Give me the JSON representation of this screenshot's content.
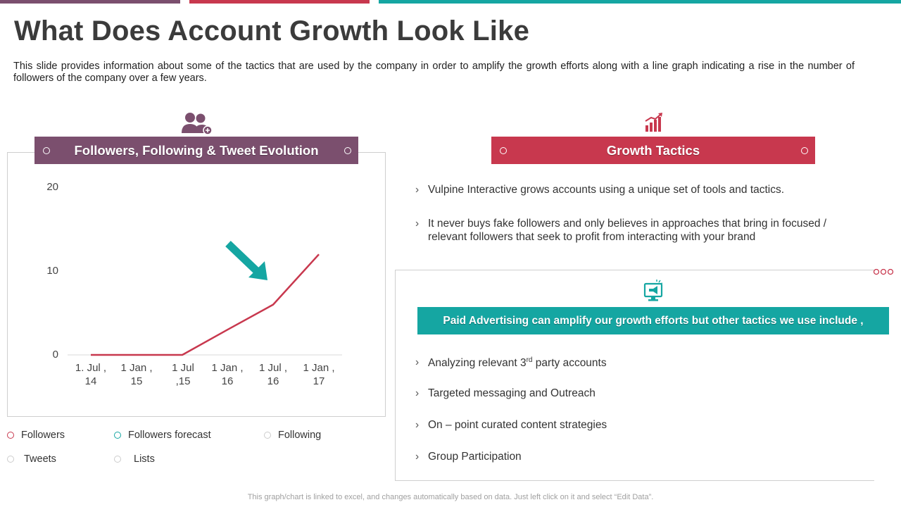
{
  "title": "What Does Account Growth Look Like",
  "description": "This slide provides information about some of the tactics that are used by the company in order to amplify the growth efforts along with a line graph indicating a rise in the number of followers of the company over a few years.",
  "colors": {
    "purple": "#7b4f6e",
    "crimson": "#c8384e",
    "teal": "#15a6a2",
    "top_left": "#7b4f6e",
    "top_mid": "#c8384e",
    "top_right": "#15a6a2"
  },
  "left_panel": {
    "header": "Followers, Following & Tweet Evolution",
    "icon": "users-icon"
  },
  "chart_data": {
    "type": "line",
    "categories": [
      "1. Jul , 14",
      "1 Jan , 15",
      "1 Jul ,15",
      "1 Jan , 16",
      "1 Jul , 16",
      "1 Jan , 17"
    ],
    "category_lines": [
      [
        "1. Jul ,",
        "14"
      ],
      [
        "1 Jan ,",
        "15"
      ],
      [
        "1 Jul",
        ",15"
      ],
      [
        "1 Jan ,",
        "16"
      ],
      [
        "1 Jul ,",
        "16"
      ],
      [
        "1 Jan ,",
        "17"
      ]
    ],
    "y_ticks": [
      "20",
      "10",
      "0"
    ],
    "ylim": [
      0,
      20
    ],
    "series": [
      {
        "name": "Followers",
        "values": [
          0,
          0,
          0,
          3,
          6,
          12
        ],
        "color": "#c8384e"
      }
    ],
    "legend": [
      {
        "label": "Followers",
        "color": "#c8384e"
      },
      {
        "label": "Followers forecast",
        "color": "#15a6a2"
      },
      {
        "label": "Following",
        "color": "#d0d0d0"
      },
      {
        "label": "Tweets",
        "color": "#d0d0d0"
      },
      {
        "label": "Lists",
        "color": "#d0d0d0"
      }
    ]
  },
  "growth": {
    "header": "Growth Tactics",
    "icon": "bar-chart-growth-icon",
    "bullets": [
      "Vulpine Interactive  grows accounts using a unique set of tools and tactics.",
      "It never buys fake followers and only believes in approaches that bring in focused / relevant followers that seek to profit from interacting with your brand"
    ]
  },
  "paid": {
    "header": "Paid Advertising can amplify our growth efforts  but other tactics  we use include ,",
    "icon": "megaphone-monitor-icon",
    "bullets": [
      {
        "text": "Analyzing relevant  3",
        "sup": "rd",
        "after": " party accounts"
      },
      {
        "text": "Targeted messaging and Outreach",
        "sup": "",
        "after": ""
      },
      {
        "text": "On – point curated content strategies",
        "sup": "",
        "after": ""
      },
      {
        "text": "Group Participation",
        "sup": "",
        "after": ""
      }
    ]
  },
  "footnote": "This graph/chart is linked to excel,  and changes automatically based on data. Just left click on it and select “Edit Data”."
}
